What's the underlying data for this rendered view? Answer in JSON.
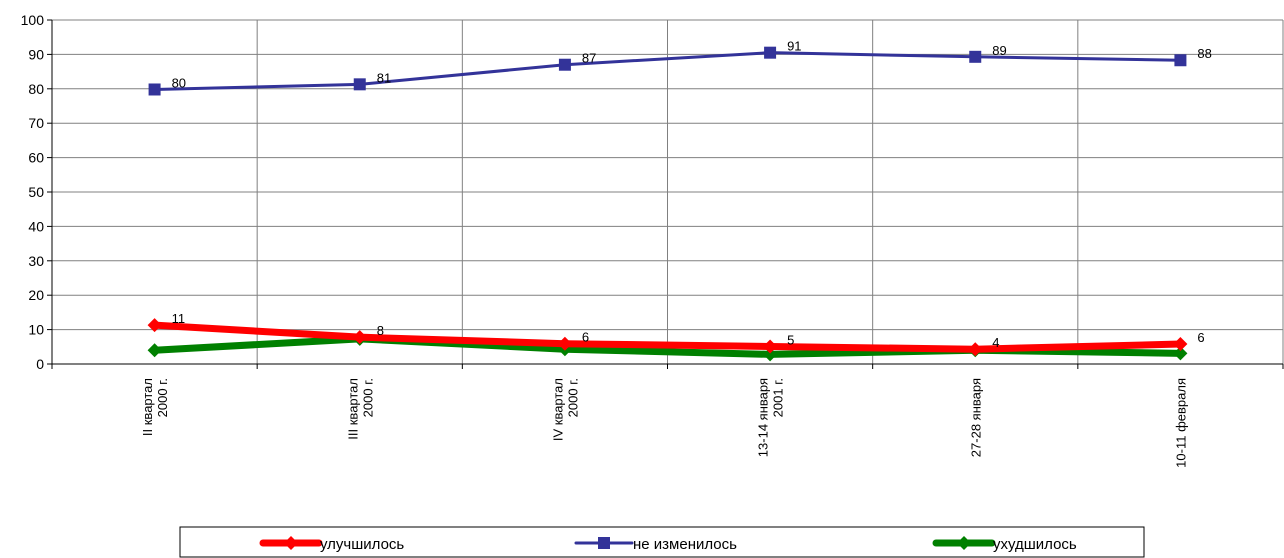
{
  "chart_data": {
    "type": "line",
    "title": "",
    "xlabel": "",
    "ylabel": "",
    "ylim": [
      0,
      100
    ],
    "yticks": [
      0,
      10,
      20,
      30,
      40,
      50,
      60,
      70,
      80,
      90,
      100
    ],
    "grid": true,
    "legend_position": "bottom",
    "categories": [
      [
        "II квартал",
        "2000 г."
      ],
      [
        "III квартал",
        "2000 г."
      ],
      [
        "IV квартал",
        "2000 г."
      ],
      [
        "13-14 января",
        "2001 г."
      ],
      [
        "27-28 января"
      ],
      [
        "10-11 февраля"
      ]
    ],
    "series": [
      {
        "name": "улучшилось",
        "color": "#ff0000",
        "marker": "diamond",
        "values": [
          11.3,
          7.8,
          5.9,
          5.1,
          4.3,
          5.8
        ],
        "labels": [
          "11",
          "8",
          "6",
          "5",
          "4",
          "6"
        ]
      },
      {
        "name": "не изменилось",
        "color": "#333399",
        "marker": "square",
        "values": [
          79.8,
          81.3,
          87.0,
          90.5,
          89.3,
          88.3
        ],
        "labels": [
          "80",
          "81",
          "87",
          "91",
          "89",
          "88"
        ]
      },
      {
        "name": "ухудшилось",
        "color": "#008000",
        "marker": "diamond",
        "values": [
          4.0,
          7.3,
          4.3,
          2.8,
          4.0,
          3.1
        ],
        "labels": []
      }
    ]
  }
}
